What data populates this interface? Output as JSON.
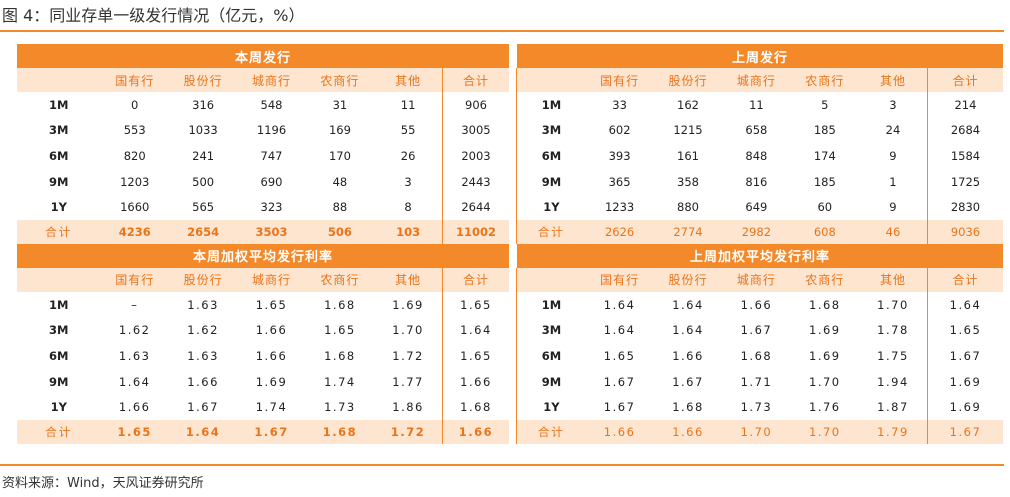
{
  "title": "图 4：同业存单一级发行情况（亿元，%）",
  "source": "资料来源：Wind，天风证券研究所",
  "sections": [
    {
      "left_header": "本周发行",
      "right_header": "上周发行",
      "columns": [
        "国有行",
        "股份行",
        "城商行",
        "农商行",
        "其他",
        "合计"
      ],
      "rows": [
        {
          "label": "1M",
          "left": [
            "0",
            "316",
            "548",
            "31",
            "11",
            "906"
          ],
          "right": [
            "33",
            "162",
            "11",
            "5",
            "3",
            "214"
          ]
        },
        {
          "label": "3M",
          "left": [
            "553",
            "1033",
            "1196",
            "169",
            "55",
            "3005"
          ],
          "right": [
            "602",
            "1215",
            "658",
            "185",
            "24",
            "2684"
          ]
        },
        {
          "label": "6M",
          "left": [
            "820",
            "241",
            "747",
            "170",
            "26",
            "2003"
          ],
          "right": [
            "393",
            "161",
            "848",
            "174",
            "9",
            "1584"
          ]
        },
        {
          "label": "9M",
          "left": [
            "1203",
            "500",
            "690",
            "48",
            "3",
            "2443"
          ],
          "right": [
            "365",
            "358",
            "816",
            "185",
            "1",
            "1725"
          ]
        },
        {
          "label": "1Y",
          "left": [
            "1660",
            "565",
            "323",
            "88",
            "8",
            "2644"
          ],
          "right": [
            "1233",
            "880",
            "649",
            "60",
            "9",
            "2830"
          ]
        }
      ],
      "total": {
        "label": "合计",
        "left": [
          "4236",
          "2654",
          "3503",
          "506",
          "103",
          "11002"
        ],
        "right": [
          "2626",
          "2774",
          "2982",
          "608",
          "46",
          "9036"
        ]
      }
    },
    {
      "left_header": "本周加权平均发行利率",
      "right_header": "上周加权平均发行利率",
      "columns": [
        "国有行",
        "股份行",
        "城商行",
        "农商行",
        "其他",
        "合计"
      ],
      "rows": [
        {
          "label": "1M",
          "left": [
            "–",
            "1.63",
            "1.65",
            "1.68",
            "1.69",
            "1.65"
          ],
          "right": [
            "1.64",
            "1.64",
            "1.66",
            "1.68",
            "1.70",
            "1.64"
          ]
        },
        {
          "label": "3M",
          "left": [
            "1.62",
            "1.62",
            "1.66",
            "1.65",
            "1.70",
            "1.64"
          ],
          "right": [
            "1.64",
            "1.64",
            "1.67",
            "1.69",
            "1.78",
            "1.65"
          ]
        },
        {
          "label": "6M",
          "left": [
            "1.63",
            "1.63",
            "1.66",
            "1.68",
            "1.72",
            "1.65"
          ],
          "right": [
            "1.65",
            "1.66",
            "1.68",
            "1.69",
            "1.75",
            "1.67"
          ]
        },
        {
          "label": "9M",
          "left": [
            "1.64",
            "1.66",
            "1.69",
            "1.74",
            "1.77",
            "1.66"
          ],
          "right": [
            "1.67",
            "1.67",
            "1.71",
            "1.70",
            "1.94",
            "1.69"
          ]
        },
        {
          "label": "1Y",
          "left": [
            "1.66",
            "1.67",
            "1.74",
            "1.73",
            "1.86",
            "1.68"
          ],
          "right": [
            "1.67",
            "1.68",
            "1.73",
            "1.76",
            "1.87",
            "1.69"
          ]
        }
      ],
      "total": {
        "label": "合计",
        "left": [
          "1.65",
          "1.64",
          "1.67",
          "1.68",
          "1.72",
          "1.66"
        ],
        "right": [
          "1.66",
          "1.66",
          "1.70",
          "1.70",
          "1.79",
          "1.67"
        ]
      }
    }
  ]
}
